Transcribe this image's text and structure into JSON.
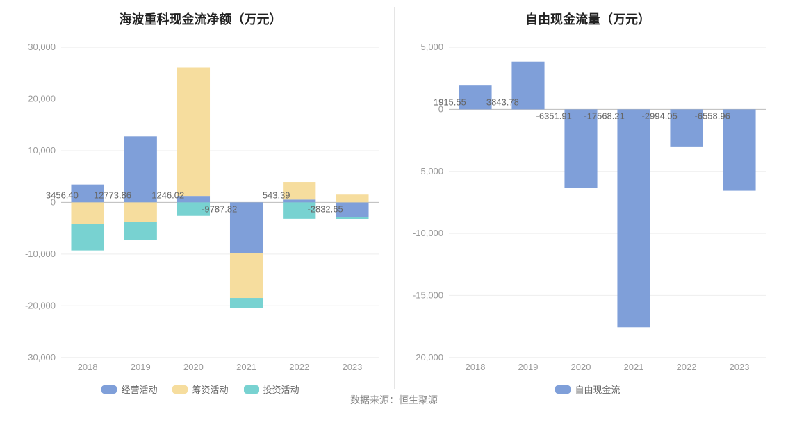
{
  "footer_text": "数据来源：恒生聚源",
  "chart_left": {
    "type": "stacked-bar",
    "title": "海波重科现金流净额（万元）",
    "title_fontsize": 18,
    "title_color": "#222222",
    "background_color": "#ffffff",
    "grid_color": "#eeeeee",
    "zero_line_color": "#bbbbbb",
    "axis_label_color": "#9a9a9a",
    "data_label_color": "#666666",
    "axis_fontsize": 13,
    "data_label_fontsize": 13,
    "y_min": -30000,
    "y_max": 30000,
    "y_tick_step": 10000,
    "y_tick_labels": [
      "-30,000",
      "-20,000",
      "-10,000",
      "0",
      "10,000",
      "20,000",
      "30,000"
    ],
    "categories": [
      "2018",
      "2019",
      "2020",
      "2021",
      "2022",
      "2023"
    ],
    "bar_group_width": 0.62,
    "series": [
      {
        "key": "operating",
        "label": "经营活动",
        "color": "#7f9fd9",
        "values": [
          3456.4,
          12773.86,
          1246.02,
          -9787.82,
          543.39,
          -2832.65
        ]
      },
      {
        "key": "financing",
        "label": "筹资活动",
        "color": "#f6dd9e",
        "values": [
          -4200,
          -3800,
          24800,
          -8700,
          3400,
          1500
        ]
      },
      {
        "key": "investing",
        "label": "投资活动",
        "color": "#78d2d1",
        "values": [
          -5100,
          -3500,
          -2600,
          -1900,
          -3150,
          -350
        ]
      }
    ],
    "data_labels": [
      {
        "category": "2018",
        "text": "3456.40"
      },
      {
        "category": "2019",
        "text": "12773.86"
      },
      {
        "category": "2020",
        "text": "1246.02"
      },
      {
        "category": "2021",
        "text": "-9787.82"
      },
      {
        "category": "2022",
        "text": "543.39"
      },
      {
        "category": "2023",
        "text": "-2832.65"
      }
    ]
  },
  "chart_right": {
    "type": "bar",
    "title": "自由现金流量（万元）",
    "title_fontsize": 18,
    "title_color": "#222222",
    "background_color": "#ffffff",
    "grid_color": "#eeeeee",
    "zero_line_color": "#bbbbbb",
    "axis_label_color": "#9a9a9a",
    "data_label_color": "#666666",
    "axis_fontsize": 13,
    "data_label_fontsize": 13,
    "y_min": -20000,
    "y_max": 5000,
    "y_tick_step": 5000,
    "y_tick_labels": [
      "-20,000",
      "-15,000",
      "-10,000",
      "-5,000",
      "0",
      "5,000"
    ],
    "categories": [
      "2018",
      "2019",
      "2020",
      "2021",
      "2022",
      "2023"
    ],
    "bar_width": 0.62,
    "series": [
      {
        "key": "fcf",
        "label": "自由现金流",
        "color": "#7f9fd9",
        "values": [
          1915.55,
          3843.78,
          -6351.91,
          -17568.21,
          -2994.05,
          -6558.96
        ]
      }
    ],
    "data_labels": [
      {
        "category": "2018",
        "text": "1915.55"
      },
      {
        "category": "2019",
        "text": "3843.78"
      },
      {
        "category": "2020",
        "text": "-6351.91"
      },
      {
        "category": "2021",
        "text": "-17568.21"
      },
      {
        "category": "2022",
        "text": "-2994.05"
      },
      {
        "category": "2023",
        "text": "-6558.96"
      }
    ]
  }
}
